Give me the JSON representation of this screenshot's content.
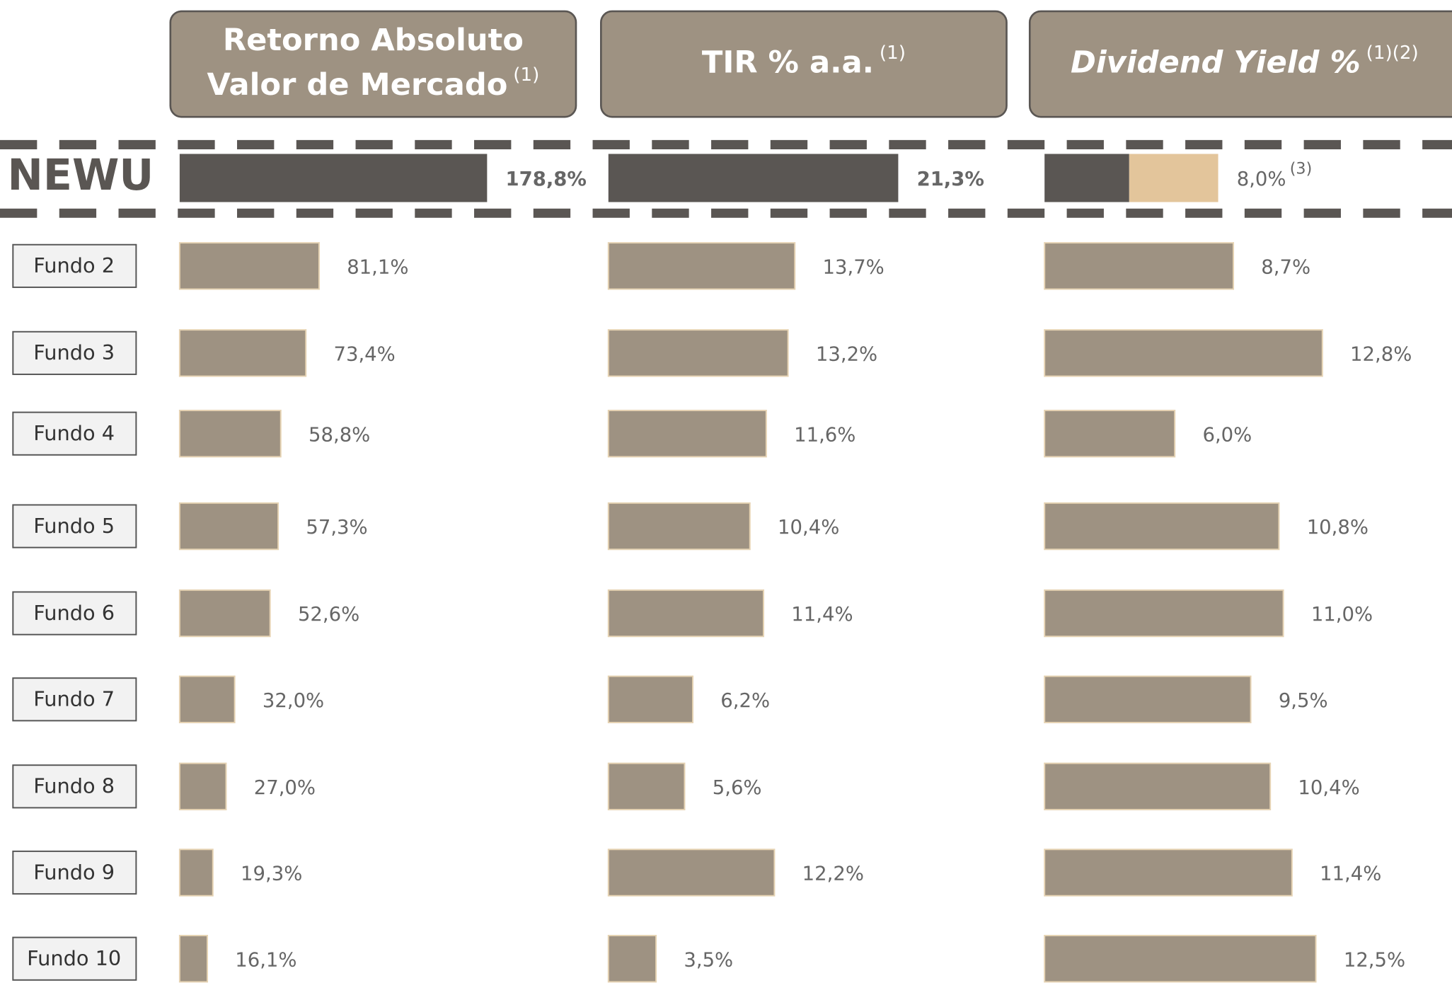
{
  "chart_data": [
    {
      "type": "bar",
      "orientation": "horizontal",
      "title": [
        "Retorno Absoluto",
        "Valor de Mercado"
      ],
      "title_note": "(1)",
      "categories": [
        "NEWU",
        "Fundo 2",
        "Fundo 3",
        "Fundo 4",
        "Fundo 5",
        "Fundo 6",
        "Fundo 7",
        "Fundo 8",
        "Fundo 9",
        "Fundo 10"
      ],
      "values": [
        178.8,
        81.1,
        73.4,
        58.8,
        57.3,
        52.6,
        32.0,
        27.0,
        19.3,
        16.1
      ],
      "value_labels": [
        "178,8%",
        "81,1%",
        "73,4%",
        "58,8%",
        "57,3%",
        "52,6%",
        "32,0%",
        "27,0%",
        "19,3%",
        "16,1%"
      ],
      "color": "#9e9282",
      "highlight_color": "#5a5653"
    },
    {
      "type": "bar",
      "orientation": "horizontal",
      "title": [
        "TIR % a.a."
      ],
      "title_note": "(1)",
      "values": [
        21.3,
        13.7,
        13.2,
        11.6,
        10.4,
        11.4,
        6.2,
        5.6,
        12.2,
        3.5
      ],
      "value_labels": [
        "21,3%",
        "13,7%",
        "13,2%",
        "11,6%",
        "10,4%",
        "11,4%",
        "6,2%",
        "5,6%",
        "12,2%",
        "3,5%"
      ],
      "color": "#9e9282",
      "highlight_color": "#5a5653"
    },
    {
      "type": "bar",
      "orientation": "horizontal",
      "title": [
        "Dividend Yield %"
      ],
      "title_note": "(1)(2)",
      "title_italic": true,
      "values": [
        8.0,
        8.7,
        12.8,
        6.0,
        10.8,
        11.0,
        9.5,
        10.4,
        11.4,
        12.5
      ],
      "value_labels": [
        "8,0%",
        "8,7%",
        "12,8%",
        "6,0%",
        "10,8%",
        "11,0%",
        "9,5%",
        "10,4%",
        "11,4%",
        "12,5%"
      ],
      "first_label_note": "(3)",
      "first_segments": [
        3.9,
        4.1
      ],
      "first_segment_colors": [
        "#5a5653",
        "#e3c59b"
      ],
      "color": "#9e9282",
      "highlight_color": "#5a5653"
    }
  ]
}
